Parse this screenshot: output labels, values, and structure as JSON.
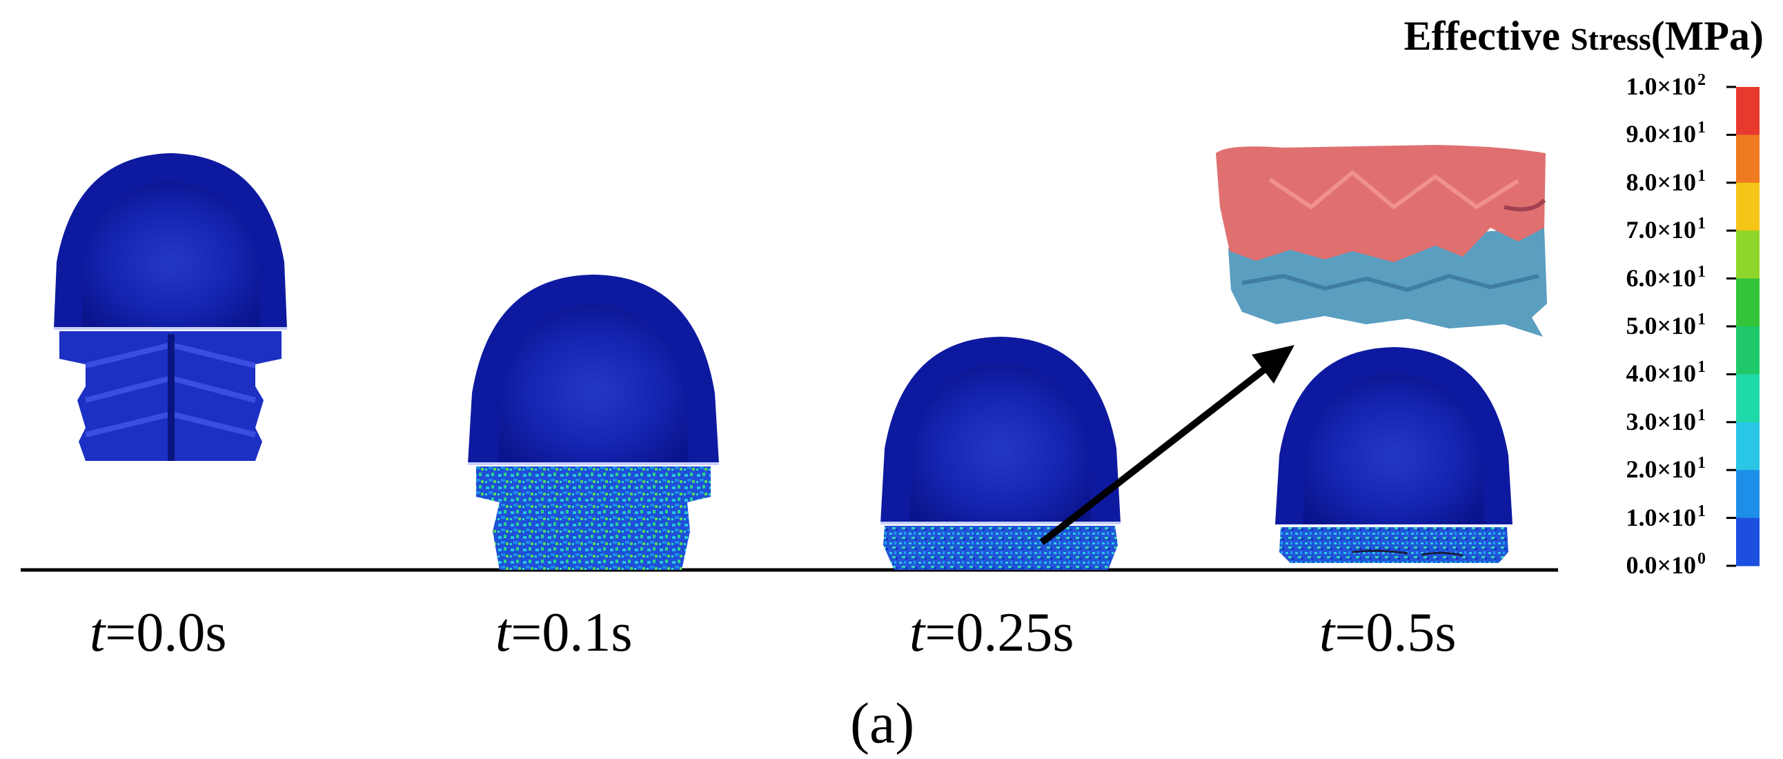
{
  "legend": {
    "title_main": "Effective ",
    "title_small": "Stress",
    "title_unit": "(MPa)",
    "ticks": [
      {
        "mantissa": "1.0×10",
        "exp": "2"
      },
      {
        "mantissa": "9.0×10",
        "exp": "1"
      },
      {
        "mantissa": "8.0×10",
        "exp": "1"
      },
      {
        "mantissa": "7.0×10",
        "exp": "1"
      },
      {
        "mantissa": "6.0×10",
        "exp": "1"
      },
      {
        "mantissa": "5.0×10",
        "exp": "1"
      },
      {
        "mantissa": "4.0×10",
        "exp": "1"
      },
      {
        "mantissa": "3.0×10",
        "exp": "1"
      },
      {
        "mantissa": "2.0×10",
        "exp": "1"
      },
      {
        "mantissa": "1.0×10",
        "exp": "1"
      },
      {
        "mantissa": "0.0×10",
        "exp": "0"
      }
    ],
    "colors": [
      "#e8392f",
      "#f07a1f",
      "#f5c518",
      "#8fd62a",
      "#34c43a",
      "#1fc96a",
      "#20d9a8",
      "#29c6e6",
      "#1e8fe8",
      "#1c4fe0"
    ]
  },
  "frames": [
    {
      "t_var": "t",
      "t_value": "=0.0s"
    },
    {
      "t_var": "t",
      "t_value": "=0.1s"
    },
    {
      "t_var": "t",
      "t_value": "=0.25s"
    },
    {
      "t_var": "t",
      "t_value": "=0.5s"
    }
  ],
  "panel_label": "(a)",
  "colors": {
    "cap_blue": "#0d1aa0",
    "cap_light": "#1a2fd0",
    "fractured_red": "#e07070",
    "fractured_blue": "#5a9ec0",
    "ground": "#000000"
  }
}
